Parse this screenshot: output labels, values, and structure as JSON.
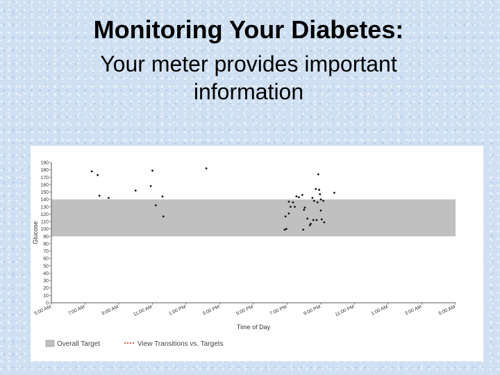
{
  "slide": {
    "title": "Monitoring Your Diabetes:",
    "subtitle_line1": "Your meter provides important",
    "subtitle_line2": "information"
  },
  "chart_data": {
    "type": "scatter",
    "title": "",
    "xlabel": "Time of Day",
    "ylabel": "Glucose",
    "ylim": [
      0,
      190
    ],
    "y_ticks": [
      0,
      10,
      20,
      30,
      40,
      50,
      60,
      70,
      80,
      90,
      100,
      110,
      120,
      130,
      140,
      150,
      160,
      170,
      180,
      190
    ],
    "x_range_hours": [
      5,
      29
    ],
    "x_ticks": [
      {
        "hour": 5,
        "label": "5:00 AM"
      },
      {
        "hour": 7,
        "label": "7:00 AM"
      },
      {
        "hour": 9,
        "label": "9:00 AM"
      },
      {
        "hour": 11,
        "label": "11:00 AM"
      },
      {
        "hour": 13,
        "label": "1:00 PM"
      },
      {
        "hour": 15,
        "label": "3:00 PM"
      },
      {
        "hour": 17,
        "label": "5:00 PM"
      },
      {
        "hour": 19,
        "label": "7:00 PM"
      },
      {
        "hour": 21,
        "label": "9:00 PM"
      },
      {
        "hour": 23,
        "label": "11:00 PM"
      },
      {
        "hour": 25,
        "label": "1:00 AM"
      },
      {
        "hour": 27,
        "label": "3:00 AM"
      },
      {
        "hour": 29,
        "label": "5:00 AM"
      }
    ],
    "target_range": {
      "low": 90,
      "high": 140,
      "label": "Overall Target",
      "color": "#c0c0c0"
    },
    "legend": [
      {
        "label": "Overall Target",
        "kind": "box",
        "color": "#c0c0c0"
      },
      {
        "label": "View Transitions vs. Targets",
        "kind": "dots",
        "color": "#cc2222"
      }
    ],
    "series": [
      {
        "points": [
          [
            7.4,
            178
          ],
          [
            7.75,
            173
          ],
          [
            7.85,
            145
          ],
          [
            8.4,
            142
          ],
          [
            10.0,
            152
          ],
          [
            10.9,
            158
          ],
          [
            11.0,
            179
          ],
          [
            11.2,
            132
          ],
          [
            11.6,
            144
          ],
          [
            11.65,
            117
          ],
          [
            14.2,
            182
          ],
          [
            18.85,
            99
          ],
          [
            18.95,
            100
          ],
          [
            18.9,
            117
          ],
          [
            19.1,
            121
          ],
          [
            19.1,
            137
          ],
          [
            19.2,
            130
          ],
          [
            19.35,
            136
          ],
          [
            19.45,
            130
          ],
          [
            19.55,
            144
          ],
          [
            19.7,
            143
          ],
          [
            19.9,
            146
          ],
          [
            19.95,
            99
          ],
          [
            20.0,
            126
          ],
          [
            20.05,
            129
          ],
          [
            20.2,
            114
          ],
          [
            20.35,
            105
          ],
          [
            20.4,
            107
          ],
          [
            20.5,
            142
          ],
          [
            20.55,
            112
          ],
          [
            20.6,
            138
          ],
          [
            20.7,
            154
          ],
          [
            20.75,
            112
          ],
          [
            20.8,
            136
          ],
          [
            20.85,
            174
          ],
          [
            20.9,
            153
          ],
          [
            20.95,
            147
          ],
          [
            21.0,
            140
          ],
          [
            21.0,
            125
          ],
          [
            21.05,
            113
          ],
          [
            21.2,
            109
          ],
          [
            21.15,
            138
          ],
          [
            21.8,
            149
          ]
        ]
      }
    ]
  }
}
